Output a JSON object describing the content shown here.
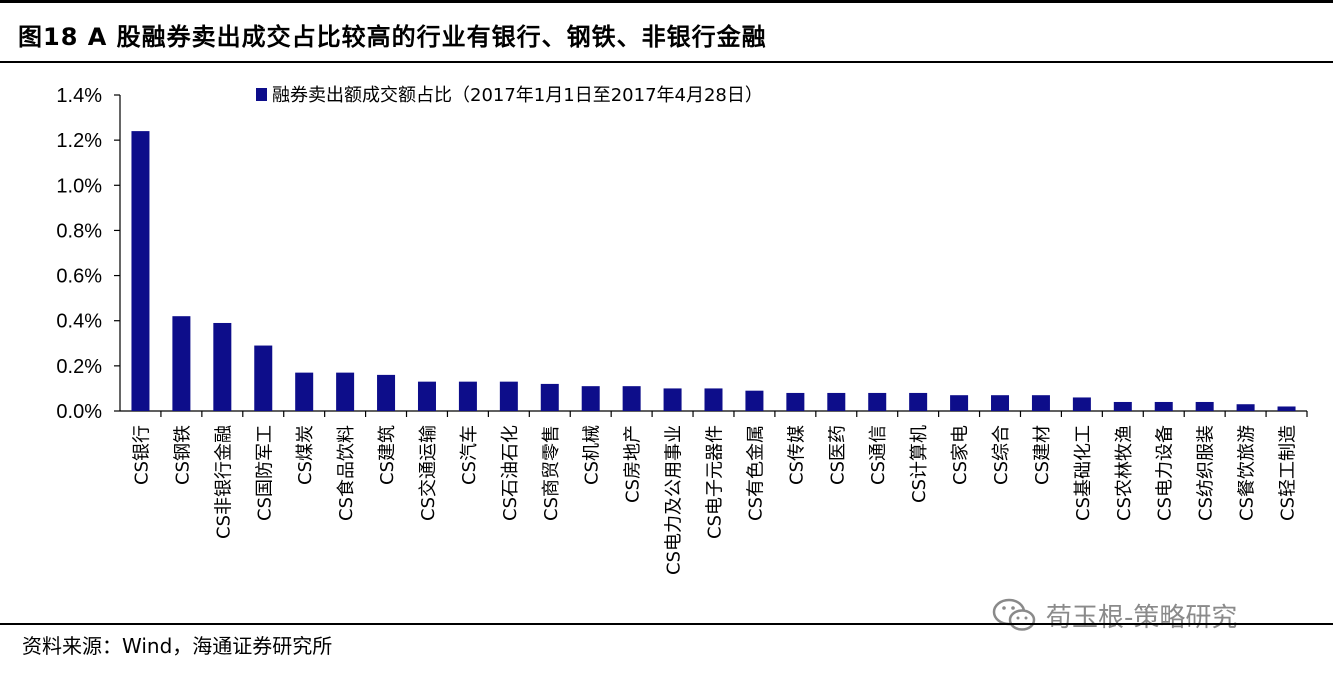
{
  "header": {
    "title": "图18 A 股融券卖出成交占比较高的行业有银行、钢铁、非银行金融"
  },
  "footer": {
    "source": "资料来源：Wind，海通证券研究所",
    "watermark_text": "荀玉根-策略研究",
    "watermark_icon": "wechat-icon"
  },
  "colors": {
    "bar": "#0d0d8a",
    "axis": "#000000",
    "watermark": "#8a8a8a"
  },
  "chart_data": {
    "type": "bar",
    "title": "",
    "xlabel": "",
    "ylabel": "",
    "ylim": [
      0,
      0.014
    ],
    "yticks": [
      0,
      0.002,
      0.004,
      0.006,
      0.008,
      0.01,
      0.012,
      0.014
    ],
    "ytick_labels": [
      "0.0%",
      "0.2%",
      "0.4%",
      "0.6%",
      "0.8%",
      "1.0%",
      "1.2%",
      "1.4%"
    ],
    "grid": false,
    "legend": "top-left",
    "categories": [
      "CS银行",
      "CS钢铁",
      "CS非银行金融",
      "CS国防军工",
      "CS煤炭",
      "CS食品饮料",
      "CS建筑",
      "CS交通运输",
      "CS汽车",
      "CS石油石化",
      "CS商贸零售",
      "CS机械",
      "CS房地产",
      "CS电力及公用事业",
      "CS电子元器件",
      "CS有色金属",
      "CS传媒",
      "CS医药",
      "CS通信",
      "CS计算机",
      "CS家电",
      "CS综合",
      "CS建材",
      "CS基础化工",
      "CS农林牧渔",
      "CS电力设备",
      "CS纺织服装",
      "CS餐饮旅游",
      "CS轻工制造"
    ],
    "series": [
      {
        "name": "融券卖出额成交额占比（2017年1月1日至2017年4月28日）",
        "values": [
          0.0124,
          0.0042,
          0.0039,
          0.0029,
          0.0017,
          0.0017,
          0.0016,
          0.0013,
          0.0013,
          0.0013,
          0.0012,
          0.0011,
          0.0011,
          0.001,
          0.001,
          0.0009,
          0.0008,
          0.0008,
          0.0008,
          0.0008,
          0.0007,
          0.0007,
          0.0007,
          0.0006,
          0.0004,
          0.0004,
          0.0004,
          0.0003,
          0.0002
        ]
      }
    ]
  }
}
